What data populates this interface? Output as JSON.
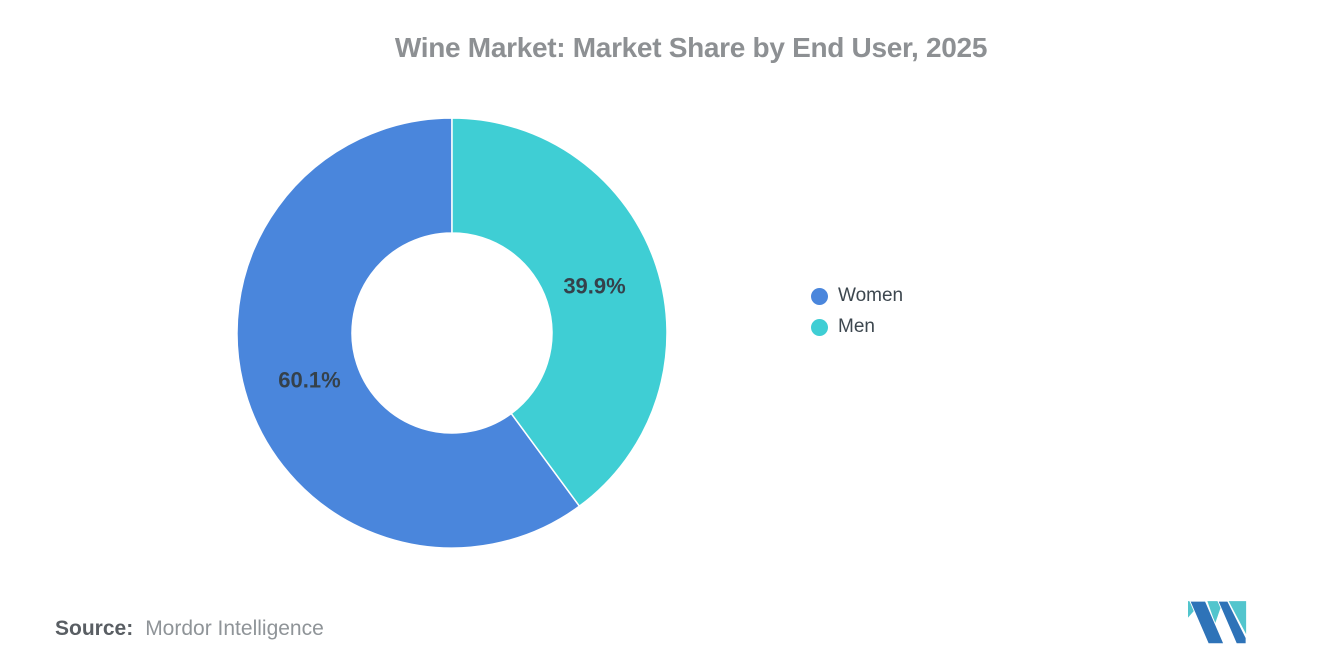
{
  "chart_data": {
    "type": "pie",
    "donut": true,
    "title": "Wine Market: Market Share by End User, 2025",
    "series": [
      {
        "name": "Women",
        "value": 60.1,
        "label": "60.1%",
        "color": "#4a86dc"
      },
      {
        "name": "Men",
        "value": 39.9,
        "label": "39.9%",
        "color": "#3fced4"
      }
    ],
    "unit": "%",
    "start_angle_deg": 0,
    "direction": "counterclockwise",
    "inner_radius_ratio": 0.465,
    "legend_position": "right",
    "data_label_color": "#35414b",
    "background_color": "#ffffff"
  },
  "source": {
    "label": "Source:",
    "value": "Mordor Intelligence"
  },
  "logo": {
    "name": "mordor-intelligence-logo",
    "blue": "#2e73b8",
    "teal": "#52c5cd"
  }
}
